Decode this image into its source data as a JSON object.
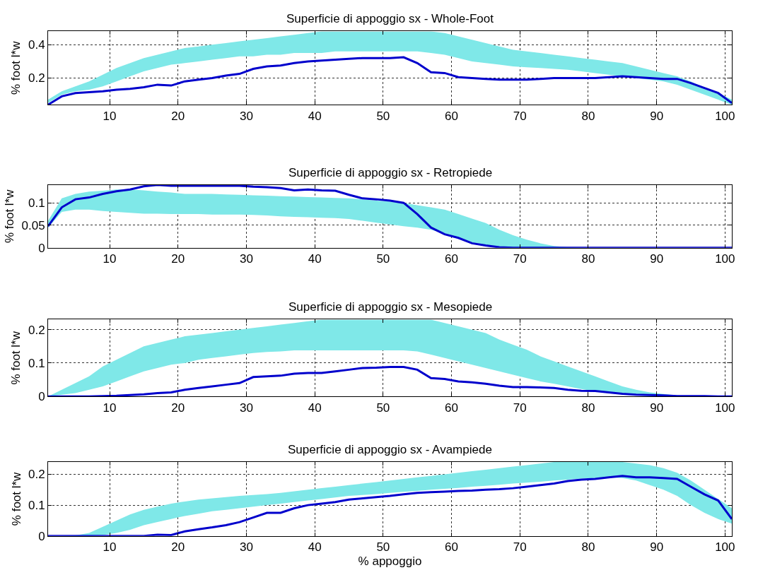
{
  "chart_data": [
    {
      "type": "line",
      "title": "Superficie di appoggio sx - Whole-Foot",
      "ylabel": "% foot l*w",
      "xlim": [
        1,
        101
      ],
      "xticks": [
        10,
        20,
        30,
        40,
        50,
        60,
        70,
        80,
        90,
        100
      ],
      "ylim": [
        0.04,
        0.48
      ],
      "yticks": [
        0.2,
        0.4
      ],
      "grid": true,
      "x": [
        1,
        3,
        5,
        7,
        9,
        11,
        13,
        15,
        17,
        19,
        21,
        23,
        25,
        27,
        29,
        31,
        33,
        35,
        37,
        39,
        41,
        43,
        45,
        47,
        49,
        51,
        53,
        55,
        57,
        59,
        61,
        63,
        65,
        67,
        69,
        71,
        73,
        75,
        77,
        79,
        81,
        83,
        85,
        87,
        89,
        91,
        93,
        95,
        97,
        99,
        101
      ],
      "series": [
        {
          "color": "#0000cc",
          "values": [
            0.04,
            0.09,
            0.11,
            0.115,
            0.12,
            0.13,
            0.135,
            0.145,
            0.16,
            0.155,
            0.18,
            0.19,
            0.2,
            0.215,
            0.225,
            0.255,
            0.27,
            0.275,
            0.29,
            0.3,
            0.305,
            0.31,
            0.315,
            0.32,
            0.32,
            0.32,
            0.325,
            0.29,
            0.235,
            0.23,
            0.205,
            0.2,
            0.195,
            0.19,
            0.19,
            0.19,
            0.195,
            0.2,
            0.2,
            0.2,
            0.2,
            0.205,
            0.21,
            0.205,
            0.2,
            0.195,
            0.195,
            0.17,
            0.14,
            0.11,
            0.05
          ],
          "lower": [
            0.05,
            0.1,
            0.12,
            0.13,
            0.15,
            0.18,
            0.21,
            0.24,
            0.26,
            0.28,
            0.29,
            0.3,
            0.31,
            0.32,
            0.33,
            0.33,
            0.34,
            0.34,
            0.35,
            0.35,
            0.35,
            0.36,
            0.36,
            0.36,
            0.36,
            0.36,
            0.36,
            0.36,
            0.35,
            0.34,
            0.32,
            0.3,
            0.29,
            0.28,
            0.27,
            0.265,
            0.26,
            0.255,
            0.25,
            0.24,
            0.23,
            0.22,
            0.21,
            0.2,
            0.19,
            0.18,
            0.16,
            0.13,
            0.1,
            0.07,
            0.04
          ],
          "upper": [
            0.07,
            0.12,
            0.15,
            0.18,
            0.22,
            0.26,
            0.29,
            0.32,
            0.34,
            0.36,
            0.38,
            0.39,
            0.4,
            0.41,
            0.42,
            0.43,
            0.44,
            0.45,
            0.46,
            0.47,
            0.48,
            0.48,
            0.48,
            0.48,
            0.48,
            0.48,
            0.48,
            0.48,
            0.48,
            0.47,
            0.45,
            0.43,
            0.41,
            0.39,
            0.37,
            0.36,
            0.35,
            0.34,
            0.33,
            0.32,
            0.31,
            0.3,
            0.29,
            0.27,
            0.25,
            0.23,
            0.21,
            0.18,
            0.14,
            0.11,
            0.07
          ]
        }
      ]
    },
    {
      "type": "line",
      "title": "Superficie di appoggio sx - Retropiede",
      "ylabel": "% foot l*w",
      "xlim": [
        1,
        101
      ],
      "xticks": [
        10,
        20,
        30,
        40,
        50,
        60,
        70,
        80,
        90,
        100
      ],
      "ylim": [
        0,
        0.14
      ],
      "yticks": [
        0,
        0.05,
        0.1
      ],
      "grid": true,
      "x": [
        1,
        3,
        5,
        7,
        9,
        11,
        13,
        15,
        17,
        19,
        21,
        23,
        25,
        27,
        29,
        31,
        33,
        35,
        37,
        39,
        41,
        43,
        45,
        47,
        49,
        51,
        53,
        55,
        57,
        59,
        61,
        63,
        65,
        67,
        69,
        71,
        73,
        75,
        77,
        79,
        81,
        83,
        85,
        87,
        89,
        91,
        93,
        95,
        97,
        99,
        101
      ],
      "series": [
        {
          "color": "#0000cc",
          "values": [
            0.048,
            0.09,
            0.108,
            0.112,
            0.12,
            0.126,
            0.13,
            0.137,
            0.14,
            0.138,
            0.138,
            0.138,
            0.138,
            0.138,
            0.138,
            0.136,
            0.135,
            0.133,
            0.128,
            0.13,
            0.128,
            0.127,
            0.118,
            0.11,
            0.108,
            0.105,
            0.1,
            0.075,
            0.045,
            0.03,
            0.022,
            0.01,
            0.005,
            0.001,
            0,
            0,
            0,
            0,
            0,
            0,
            0,
            0,
            0,
            0,
            0,
            0,
            0,
            0,
            0,
            0,
            0
          ],
          "lower": [
            0.045,
            0.08,
            0.085,
            0.085,
            0.082,
            0.08,
            0.078,
            0.076,
            0.076,
            0.075,
            0.075,
            0.075,
            0.074,
            0.074,
            0.074,
            0.073,
            0.072,
            0.07,
            0.069,
            0.068,
            0.067,
            0.066,
            0.064,
            0.06,
            0.056,
            0.052,
            0.048,
            0.045,
            0.04,
            0.032,
            0.02,
            0.01,
            0.004,
            0.001,
            0,
            0,
            0,
            0,
            0,
            0,
            0,
            0,
            0,
            0,
            0,
            0,
            0,
            0,
            0,
            0,
            0
          ],
          "upper": [
            0.06,
            0.11,
            0.12,
            0.125,
            0.127,
            0.13,
            0.13,
            0.128,
            0.125,
            0.123,
            0.12,
            0.12,
            0.12,
            0.119,
            0.118,
            0.117,
            0.116,
            0.115,
            0.114,
            0.113,
            0.112,
            0.111,
            0.11,
            0.108,
            0.105,
            0.103,
            0.1,
            0.095,
            0.09,
            0.085,
            0.075,
            0.065,
            0.055,
            0.04,
            0.028,
            0.018,
            0.01,
            0.004,
            0.001,
            0,
            0,
            0,
            0,
            0,
            0,
            0,
            0,
            0,
            0,
            0,
            0
          ]
        }
      ]
    },
    {
      "type": "line",
      "title": "Superficie di appoggio sx - Mesopiede",
      "ylabel": "% foot l*w",
      "xlim": [
        1,
        101
      ],
      "xticks": [
        10,
        20,
        30,
        40,
        50,
        60,
        70,
        80,
        90,
        100
      ],
      "ylim": [
        0,
        0.23
      ],
      "yticks": [
        0,
        0.1,
        0.2
      ],
      "grid": true,
      "x": [
        1,
        3,
        5,
        7,
        9,
        11,
        13,
        15,
        17,
        19,
        21,
        23,
        25,
        27,
        29,
        31,
        33,
        35,
        37,
        39,
        41,
        43,
        45,
        47,
        49,
        51,
        53,
        55,
        57,
        59,
        61,
        63,
        65,
        67,
        69,
        71,
        73,
        75,
        77,
        79,
        81,
        83,
        85,
        87,
        89,
        91,
        93,
        95,
        97,
        99,
        101
      ],
      "series": [
        {
          "color": "#0000cc",
          "values": [
            0,
            0,
            0,
            0,
            0.001,
            0.002,
            0.004,
            0.006,
            0.01,
            0.012,
            0.02,
            0.025,
            0.03,
            0.035,
            0.04,
            0.058,
            0.06,
            0.062,
            0.068,
            0.07,
            0.07,
            0.075,
            0.08,
            0.085,
            0.086,
            0.088,
            0.088,
            0.08,
            0.055,
            0.052,
            0.045,
            0.042,
            0.038,
            0.032,
            0.028,
            0.028,
            0.027,
            0.025,
            0.02,
            0.017,
            0.016,
            0.012,
            0.008,
            0.005,
            0.004,
            0.003,
            0.001,
            0.001,
            0.001,
            0,
            0
          ],
          "lower": [
            0,
            0.005,
            0.01,
            0.02,
            0.03,
            0.045,
            0.06,
            0.075,
            0.085,
            0.095,
            0.1,
            0.11,
            0.115,
            0.12,
            0.125,
            0.13,
            0.133,
            0.135,
            0.138,
            0.138,
            0.138,
            0.138,
            0.138,
            0.138,
            0.138,
            0.138,
            0.138,
            0.135,
            0.125,
            0.115,
            0.105,
            0.095,
            0.085,
            0.075,
            0.065,
            0.055,
            0.045,
            0.038,
            0.03,
            0.022,
            0.015,
            0.01,
            0.006,
            0.003,
            0.001,
            0,
            0,
            0,
            0,
            0,
            0
          ],
          "upper": [
            0,
            0.02,
            0.04,
            0.06,
            0.09,
            0.11,
            0.13,
            0.15,
            0.16,
            0.17,
            0.18,
            0.185,
            0.19,
            0.195,
            0.2,
            0.205,
            0.21,
            0.215,
            0.22,
            0.225,
            0.23,
            0.23,
            0.23,
            0.23,
            0.23,
            0.23,
            0.23,
            0.23,
            0.23,
            0.22,
            0.21,
            0.2,
            0.19,
            0.17,
            0.155,
            0.14,
            0.12,
            0.105,
            0.09,
            0.075,
            0.06,
            0.045,
            0.03,
            0.02,
            0.012,
            0.007,
            0.003,
            0.001,
            0,
            0,
            0
          ]
        }
      ]
    },
    {
      "type": "line",
      "title": "Superficie di appoggio sx - Avampiede",
      "ylabel": "% foot l*w",
      "xlabel": "% appoggio",
      "xlim": [
        1,
        101
      ],
      "xticks": [
        10,
        20,
        30,
        40,
        50,
        60,
        70,
        80,
        90,
        100
      ],
      "ylim": [
        0,
        0.24
      ],
      "yticks": [
        0,
        0.1,
        0.2
      ],
      "grid": true,
      "x": [
        1,
        3,
        5,
        7,
        9,
        11,
        13,
        15,
        17,
        19,
        21,
        23,
        25,
        27,
        29,
        31,
        33,
        35,
        37,
        39,
        41,
        43,
        45,
        47,
        49,
        51,
        53,
        55,
        57,
        59,
        61,
        63,
        65,
        67,
        69,
        71,
        73,
        75,
        77,
        79,
        81,
        83,
        85,
        87,
        89,
        91,
        93,
        95,
        97,
        99,
        101
      ],
      "series": [
        {
          "color": "#0000cc",
          "values": [
            0,
            0,
            0,
            0,
            0,
            0,
            0,
            0,
            0.004,
            0.003,
            0.015,
            0.022,
            0.028,
            0.035,
            0.045,
            0.06,
            0.075,
            0.075,
            0.09,
            0.1,
            0.105,
            0.11,
            0.118,
            0.122,
            0.126,
            0.13,
            0.135,
            0.14,
            0.142,
            0.144,
            0.146,
            0.147,
            0.15,
            0.152,
            0.155,
            0.16,
            0.165,
            0.17,
            0.178,
            0.183,
            0.185,
            0.19,
            0.195,
            0.19,
            0.19,
            0.188,
            0.185,
            0.16,
            0.135,
            0.115,
            0.055
          ],
          "lower": [
            0,
            0,
            0,
            0,
            0.003,
            0.01,
            0.02,
            0.035,
            0.045,
            0.055,
            0.065,
            0.072,
            0.08,
            0.085,
            0.09,
            0.095,
            0.1,
            0.105,
            0.11,
            0.115,
            0.12,
            0.125,
            0.13,
            0.133,
            0.136,
            0.14,
            0.143,
            0.146,
            0.15,
            0.153,
            0.156,
            0.16,
            0.163,
            0.166,
            0.17,
            0.173,
            0.176,
            0.18,
            0.183,
            0.186,
            0.188,
            0.19,
            0.188,
            0.18,
            0.165,
            0.15,
            0.13,
            0.1,
            0.075,
            0.055,
            0.04
          ],
          "upper": [
            0,
            0,
            0.002,
            0.01,
            0.03,
            0.05,
            0.07,
            0.085,
            0.095,
            0.105,
            0.112,
            0.118,
            0.122,
            0.126,
            0.13,
            0.133,
            0.136,
            0.14,
            0.145,
            0.15,
            0.155,
            0.16,
            0.165,
            0.17,
            0.175,
            0.18,
            0.185,
            0.19,
            0.195,
            0.2,
            0.205,
            0.21,
            0.215,
            0.22,
            0.225,
            0.23,
            0.235,
            0.24,
            0.24,
            0.24,
            0.24,
            0.24,
            0.24,
            0.235,
            0.23,
            0.22,
            0.205,
            0.18,
            0.15,
            0.12,
            0.09
          ]
        }
      ]
    }
  ]
}
